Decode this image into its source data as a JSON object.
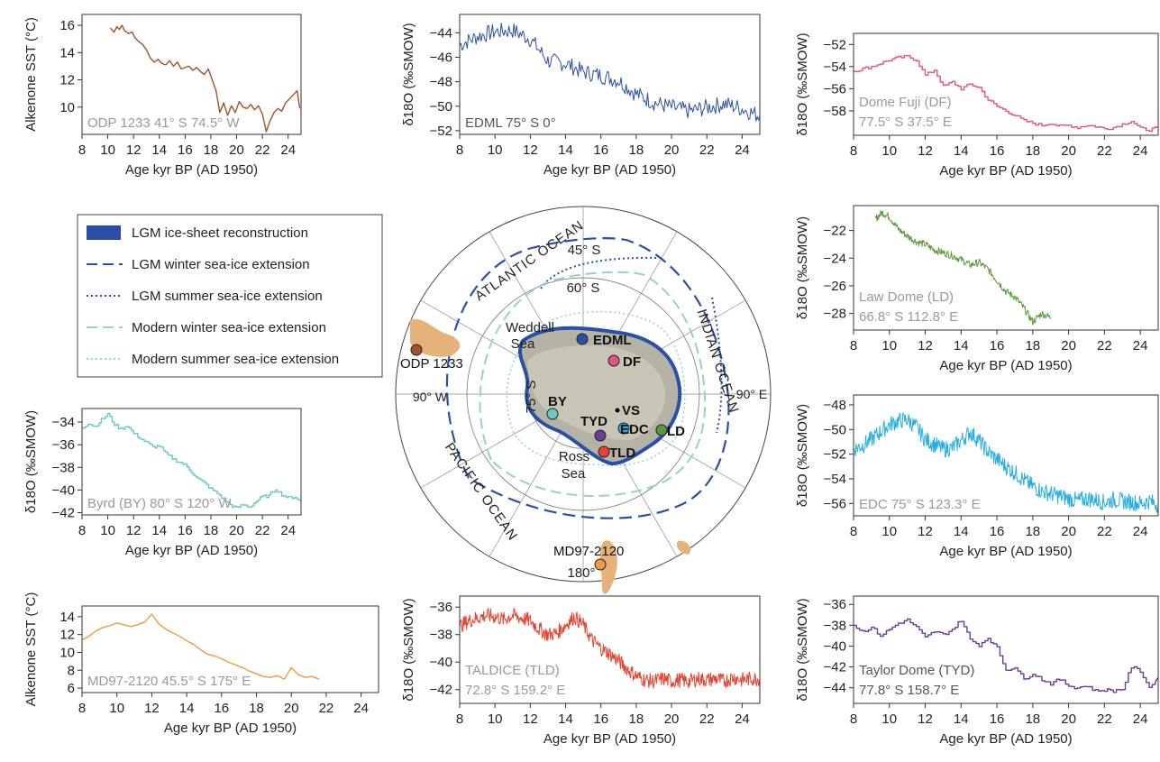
{
  "chart_data": [
    {
      "id": "odp1233",
      "type": "line",
      "color": "#a0522d",
      "ylabel": "Alkenone SST (°C)",
      "xlabel": "Age kyr BP (AD 1950)",
      "annotation": "ODP 1233 41° S 74.5° W",
      "annotation_color": "#999999",
      "xlim": [
        8,
        25
      ],
      "ylim": [
        8,
        16.8
      ],
      "xticks": [
        "8",
        "10",
        "12",
        "14",
        "16",
        "18",
        "20",
        "22",
        "24"
      ],
      "yticks": [
        "10",
        "12",
        "14",
        "16"
      ],
      "series": [
        {
          "x": [
            10.2,
            10.5,
            10.7,
            10.9,
            11.1,
            11.3,
            11.6,
            11.9,
            12.1,
            12.4,
            12.7,
            13.0,
            13.3,
            13.6,
            13.9,
            14.2,
            14.5,
            14.8,
            15.1,
            15.4,
            15.7,
            16.0,
            16.3,
            16.6,
            16.9,
            17.2,
            17.5,
            17.8,
            18.1,
            18.4,
            18.7,
            19.0,
            19.3,
            19.6,
            19.9,
            20.2,
            20.5,
            20.8,
            21.1,
            21.4,
            21.7,
            22.0,
            22.3,
            22.6,
            22.9,
            23.2,
            23.5,
            23.8,
            24.1,
            24.4,
            24.7,
            24.9
          ],
          "y": [
            15.8,
            15.5,
            15.9,
            15.7,
            16.0,
            15.6,
            15.4,
            15.5,
            15.1,
            14.8,
            14.6,
            14.2,
            13.6,
            13.3,
            13.5,
            13.2,
            13.1,
            13.4,
            13.0,
            13.3,
            12.8,
            12.9,
            13.0,
            12.7,
            12.9,
            12.6,
            12.4,
            12.8,
            12.0,
            11.2,
            9.6,
            10.3,
            9.4,
            10.1,
            9.6,
            10.4,
            10.0,
            9.9,
            10.2,
            9.8,
            10.1,
            9.5,
            8.2,
            9.0,
            9.6,
            9.9,
            9.7,
            10.3,
            10.6,
            10.9,
            11.2,
            9.9
          ]
        }
      ]
    },
    {
      "id": "edml",
      "type": "line",
      "color": "#2a4fa8",
      "ylabel": "δ18O (‰SMOW)",
      "xlabel": "Age kyr BP (AD 1950)",
      "annotation": "EDML 75° S 0°",
      "annotation_color": "#555555",
      "xlim": [
        8,
        25
      ],
      "ylim": [
        -52.3,
        -42.5
      ],
      "xticks": [
        "8",
        "10",
        "12",
        "14",
        "16",
        "18",
        "20",
        "22",
        "24"
      ],
      "yticks": [
        "-44",
        "-46",
        "-48",
        "-50",
        "-52"
      ],
      "series": [
        {
          "x": [
            8,
            9,
            10,
            11,
            12,
            13,
            14,
            15,
            16,
            17,
            18,
            19,
            20,
            21,
            22,
            23,
            24,
            25
          ],
          "y": [
            -45,
            -44.3,
            -43.9,
            -43.8,
            -44.5,
            -46.3,
            -46.5,
            -47.2,
            -47.5,
            -47.9,
            -49.0,
            -49.7,
            -50.1,
            -50.4,
            -50.1,
            -49.8,
            -50.2,
            -50.8
          ]
        }
      ]
    },
    {
      "id": "dome-fuji",
      "type": "line",
      "color": "#e05585",
      "ylabel": "δ18O (‰SMOW)",
      "xlabel": "Age kyr BP (AD 1950)",
      "annotation": "Dome Fuji (DF)",
      "annotation2": "77.5° S 37.5° E",
      "annotation_color": "#999999",
      "xlim": [
        8,
        25
      ],
      "ylim": [
        -60.2,
        -51
      ],
      "xticks": [
        "8",
        "10",
        "12",
        "14",
        "16",
        "18",
        "20",
        "22",
        "24"
      ],
      "yticks": [
        "-52",
        "-54",
        "-56",
        "-58"
      ],
      "series": [
        {
          "x": [
            8,
            8.5,
            9,
            9.5,
            10,
            10.5,
            11,
            11.5,
            12,
            12.5,
            13,
            13.5,
            14,
            14.5,
            15,
            15.5,
            16,
            16.5,
            17,
            17.5,
            18,
            18.5,
            19,
            19.5,
            20,
            20.5,
            21,
            21.5,
            22,
            22.5,
            23,
            23.5,
            24,
            24.5,
            25
          ],
          "y": [
            -54.4,
            -54.2,
            -54,
            -53.7,
            -53.4,
            -53.2,
            -53.1,
            -53.4,
            -54.8,
            -54.3,
            -55.8,
            -55.4,
            -56.0,
            -55.6,
            -55.9,
            -57.0,
            -57.6,
            -58.0,
            -58.4,
            -58.9,
            -59.1,
            -59.3,
            -59.1,
            -59.4,
            -59.3,
            -59.5,
            -59.3,
            -59.4,
            -59.6,
            -59.5,
            -59.2,
            -58.9,
            -59.6,
            -59.7,
            -59.5
          ]
        }
      ]
    },
    {
      "id": "law-dome",
      "type": "line",
      "color": "#5a9a3a",
      "ylabel": "δ18O (‰SMOW)",
      "xlabel": "Age kyr BP (AD 1950)",
      "annotation": "Law Dome (LD)",
      "annotation2": "66.8° S 112.8° E",
      "annotation_color": "#999999",
      "xlim": [
        8,
        25
      ],
      "ylim": [
        -29.2,
        -20.2
      ],
      "xticks": [
        "8",
        "10",
        "12",
        "14",
        "16",
        "18",
        "20",
        "22",
        "24"
      ],
      "yticks": [
        "-22",
        "-24",
        "-26",
        "-28"
      ],
      "series": [
        {
          "x": [
            9.2,
            9.6,
            10,
            10.5,
            11,
            11.5,
            12,
            12.5,
            13,
            13.5,
            14,
            14.5,
            15,
            15.5,
            16,
            16.5,
            17,
            17.5,
            18,
            18.5,
            19
          ],
          "y": [
            -21.2,
            -20.7,
            -21.0,
            -21.9,
            -22.4,
            -22.8,
            -23.0,
            -23.4,
            -23.6,
            -23.8,
            -24.1,
            -24.5,
            -24.3,
            -24.8,
            -25.6,
            -26.4,
            -26.8,
            -27.6,
            -28.6,
            -28.0,
            -28.3
          ]
        }
      ]
    },
    {
      "id": "byrd",
      "type": "line",
      "color": "#6cc7c7",
      "ylabel": "δ18O (‰SMOW)",
      "xlabel": "Age kyr BP (AD 1950)",
      "annotation": "Byrd (BY) 80° S 120° W",
      "annotation_color": "#999999",
      "xlim": [
        8,
        25
      ],
      "ylim": [
        -42.2,
        -32.8
      ],
      "xticks": [
        "8",
        "10",
        "12",
        "14",
        "16",
        "18",
        "20",
        "22",
        "24"
      ],
      "yticks": [
        "-34",
        "-36",
        "-38",
        "-40",
        "-42"
      ],
      "series": [
        {
          "x": [
            8,
            8.5,
            9,
            9.5,
            10,
            10.5,
            11,
            11.5,
            12,
            12.5,
            13,
            13.5,
            14,
            14.5,
            15,
            15.5,
            16,
            16.5,
            17,
            17.5,
            18,
            18.5,
            19,
            19.5,
            20,
            20.5,
            21,
            21.5,
            22,
            22.5,
            23,
            23.5,
            24,
            24.5,
            25
          ],
          "y": [
            -34.5,
            -34.1,
            -34.4,
            -33.8,
            -33.3,
            -34.2,
            -34.6,
            -34.3,
            -35.0,
            -35.4,
            -35.8,
            -36.2,
            -36.1,
            -36.8,
            -37.2,
            -37.5,
            -37.8,
            -38.4,
            -39.0,
            -39.4,
            -39.9,
            -40.3,
            -40.8,
            -41.3,
            -41.6,
            -41.3,
            -41.5,
            -41.0,
            -40.6,
            -40.5,
            -39.9,
            -40.4,
            -40.7,
            -40.6,
            -41.0
          ]
        }
      ]
    },
    {
      "id": "edc",
      "type": "line",
      "color": "#29aee0",
      "ylabel": "δ18O (‰SMOW)",
      "xlabel": "Age kyr BP (AD 1950)",
      "annotation": "EDC 75° S 123.3° E",
      "annotation_color": "#999999",
      "xlim": [
        8,
        25
      ],
      "ylim": [
        -57,
        -47.2
      ],
      "xticks": [
        "8",
        "10",
        "12",
        "14",
        "16",
        "18",
        "20",
        "22",
        "24"
      ],
      "yticks": [
        "-48",
        "-50",
        "-52",
        "-54",
        "-56"
      ],
      "series": [
        {
          "x": [
            8,
            8.5,
            9,
            9.5,
            10,
            10.5,
            11,
            11.5,
            12,
            12.5,
            13,
            13.5,
            14,
            14.5,
            15,
            15.5,
            16,
            16.5,
            17,
            17.5,
            18,
            18.5,
            19,
            19.5,
            20,
            20.5,
            21,
            21.5,
            22,
            22.5,
            23,
            23.5,
            24,
            24.5,
            25
          ],
          "y": [
            -51.6,
            -51.3,
            -50.8,
            -50.2,
            -49.6,
            -49.3,
            -49.2,
            -49.8,
            -50.8,
            -51.2,
            -51.6,
            -51.5,
            -50.9,
            -50.2,
            -50.9,
            -51.8,
            -52.4,
            -53.0,
            -53.5,
            -54.1,
            -54.6,
            -55.0,
            -55.2,
            -55.4,
            -55.6,
            -55.8,
            -55.6,
            -55.7,
            -55.9,
            -55.7,
            -55.8,
            -55.9,
            -56.0,
            -55.8,
            -56.1
          ]
        }
      ]
    },
    {
      "id": "md97",
      "type": "line",
      "color": "#f29a3e",
      "ylabel": "Alkenone SST (°C)",
      "xlabel": "Age kyr BP (AD 1950)",
      "annotation": "MD97-2120 45.5° S 175° E",
      "annotation_color": "#999999",
      "xlim": [
        8,
        25
      ],
      "ylim": [
        5.5,
        15.2
      ],
      "xticks": [
        "8",
        "10",
        "12",
        "14",
        "16",
        "18",
        "20",
        "22",
        "24"
      ],
      "yticks": [
        "6",
        "8",
        "10",
        "12",
        "14"
      ],
      "series": [
        {
          "x": [
            8,
            8.4,
            8.8,
            9.2,
            9.6,
            10,
            10.4,
            10.8,
            11.2,
            11.6,
            12,
            12.4,
            12.8,
            13.2,
            13.6,
            14,
            14.4,
            14.8,
            15.2,
            15.6,
            16,
            16.4,
            16.8,
            17.2,
            17.6,
            18,
            18.4,
            18.8,
            19.2,
            19.6,
            20,
            20.4,
            20.8,
            21.2,
            21.6
          ],
          "y": [
            11.4,
            11.8,
            12.4,
            12.8,
            13.0,
            13.3,
            13.1,
            12.9,
            13.1,
            13.4,
            14.3,
            13.2,
            12.6,
            12.2,
            11.8,
            11.3,
            10.9,
            10.3,
            9.8,
            9.6,
            9.3,
            8.9,
            8.6,
            8.3,
            7.9,
            7.6,
            7.3,
            7.2,
            7.4,
            7.0,
            8.3,
            7.5,
            7.2,
            7.3,
            7.0
          ]
        }
      ]
    },
    {
      "id": "taldice",
      "type": "line",
      "color": "#e8412f",
      "ylabel": "δ18O (‰SMOW)",
      "xlabel": "Age kyr BP (AD 1950)",
      "annotation": "TALDICE (TLD)",
      "annotation2": "72.8° S 159.2° E",
      "annotation_color": "#999999",
      "xlim": [
        8,
        25
      ],
      "ylim": [
        -43,
        -35.2
      ],
      "xticks": [
        "8",
        "10",
        "12",
        "14",
        "16",
        "18",
        "20",
        "22",
        "24"
      ],
      "yticks": [
        "-36",
        "-38",
        "-40",
        "-42"
      ],
      "series": [
        {
          "x": [
            8,
            8.5,
            9,
            9.5,
            10,
            10.5,
            11,
            11.5,
            12,
            12.5,
            13,
            13.5,
            14,
            14.5,
            15,
            15.5,
            16,
            16.5,
            17,
            17.5,
            18,
            18.5,
            19,
            19.5,
            20,
            20.5,
            21,
            21.5,
            22,
            22.5,
            23,
            23.5,
            24,
            24.5,
            25
          ],
          "y": [
            -37.4,
            -37.0,
            -36.8,
            -36.6,
            -36.7,
            -36.9,
            -36.6,
            -36.8,
            -37.0,
            -37.6,
            -38.0,
            -37.9,
            -37.3,
            -36.7,
            -37.3,
            -38.4,
            -39.0,
            -39.4,
            -39.9,
            -40.5,
            -41.0,
            -41.3,
            -41.4,
            -41.2,
            -41.4,
            -41.3,
            -41.4,
            -41.2,
            -41.3,
            -41.2,
            -41.4,
            -41.1,
            -41.3,
            -41.2,
            -41.2
          ]
        }
      ]
    },
    {
      "id": "taylor-dome",
      "type": "line",
      "color": "#6a3d9a",
      "ylabel": "δ18O (‰SMOW)",
      "xlabel": "Age kyr BP (AD 1950)",
      "annotation": "Taylor Dome (TYD)",
      "annotation2": "77.8° S 158.7° E",
      "annotation_color": "#555555",
      "xlim": [
        8,
        25
      ],
      "ylim": [
        -45.5,
        -35.2
      ],
      "xticks": [
        "8",
        "10",
        "12",
        "14",
        "16",
        "18",
        "20",
        "22",
        "24"
      ],
      "yticks": [
        "-36",
        "-38",
        "-40",
        "-42",
        "-44"
      ],
      "series": [
        {
          "x": [
            8,
            8.5,
            9,
            9.5,
            10,
            10.5,
            11,
            11.5,
            12,
            12.5,
            13,
            13.5,
            14,
            14.5,
            15,
            15.5,
            16,
            16.5,
            17,
            17.5,
            18,
            18.5,
            19,
            19.5,
            20,
            20.5,
            21,
            21.5,
            22,
            22.5,
            23,
            23.5,
            24,
            24.5,
            25
          ],
          "y": [
            -38.0,
            -38.6,
            -38.2,
            -39.0,
            -38.4,
            -37.8,
            -37.5,
            -38.2,
            -39.2,
            -38.6,
            -38.9,
            -38.4,
            -37.5,
            -39.4,
            -39.9,
            -39.2,
            -40.2,
            -42.3,
            -42.0,
            -43.2,
            -42.6,
            -43.2,
            -43.6,
            -43.2,
            -43.8,
            -44.0,
            -43.8,
            -44.3,
            -44.2,
            -44.3,
            -44.1,
            -42.0,
            -42.4,
            -44.0,
            -43.0
          ]
        }
      ]
    }
  ],
  "legend": {
    "items": [
      {
        "label": "LGM ice-sheet reconstruction",
        "style": "box",
        "color": "#2a4fa8"
      },
      {
        "label": "LGM winter sea-ice extension",
        "style": "longdash",
        "color": "#2a4fa8"
      },
      {
        "label": "LGM summer sea-ice extension",
        "style": "dot",
        "color": "#2a4fa8"
      },
      {
        "label": "Modern winter sea-ice extension",
        "style": "longdash",
        "color": "#8fd3d6"
      },
      {
        "label": "Modern summer sea-ice extension",
        "style": "dot",
        "color": "#8fd3d6"
      }
    ]
  },
  "map": {
    "lat_labels": [
      "45° S",
      "60° S",
      "75° S"
    ],
    "lon_labels": [
      "90° W",
      "90° E",
      "180°"
    ],
    "ocean_labels": [
      "ATLANTIC OCEAN",
      "INDIAN OCEAN",
      "PACIFIC OCEAN"
    ],
    "region_labels": [
      "Weddell",
      "Sea",
      "Ross",
      "Sea"
    ],
    "sites": [
      {
        "label": "EDML",
        "color": "#2a4fa8"
      },
      {
        "label": "DF",
        "color": "#e05585"
      },
      {
        "label": "BY",
        "color": "#6cc7c7"
      },
      {
        "label": "VS",
        "color": "#000000"
      },
      {
        "label": "TYD",
        "color": "#6a3d9a"
      },
      {
        "label": "EDC",
        "color": "#29aee0"
      },
      {
        "label": "LD",
        "color": "#5a9a3a"
      },
      {
        "label": "TLD",
        "color": "#e8412f"
      },
      {
        "label": "ODP 1233",
        "color": "#a0522d"
      },
      {
        "label": "MD97-2120",
        "color": "#f29a3e"
      }
    ]
  }
}
